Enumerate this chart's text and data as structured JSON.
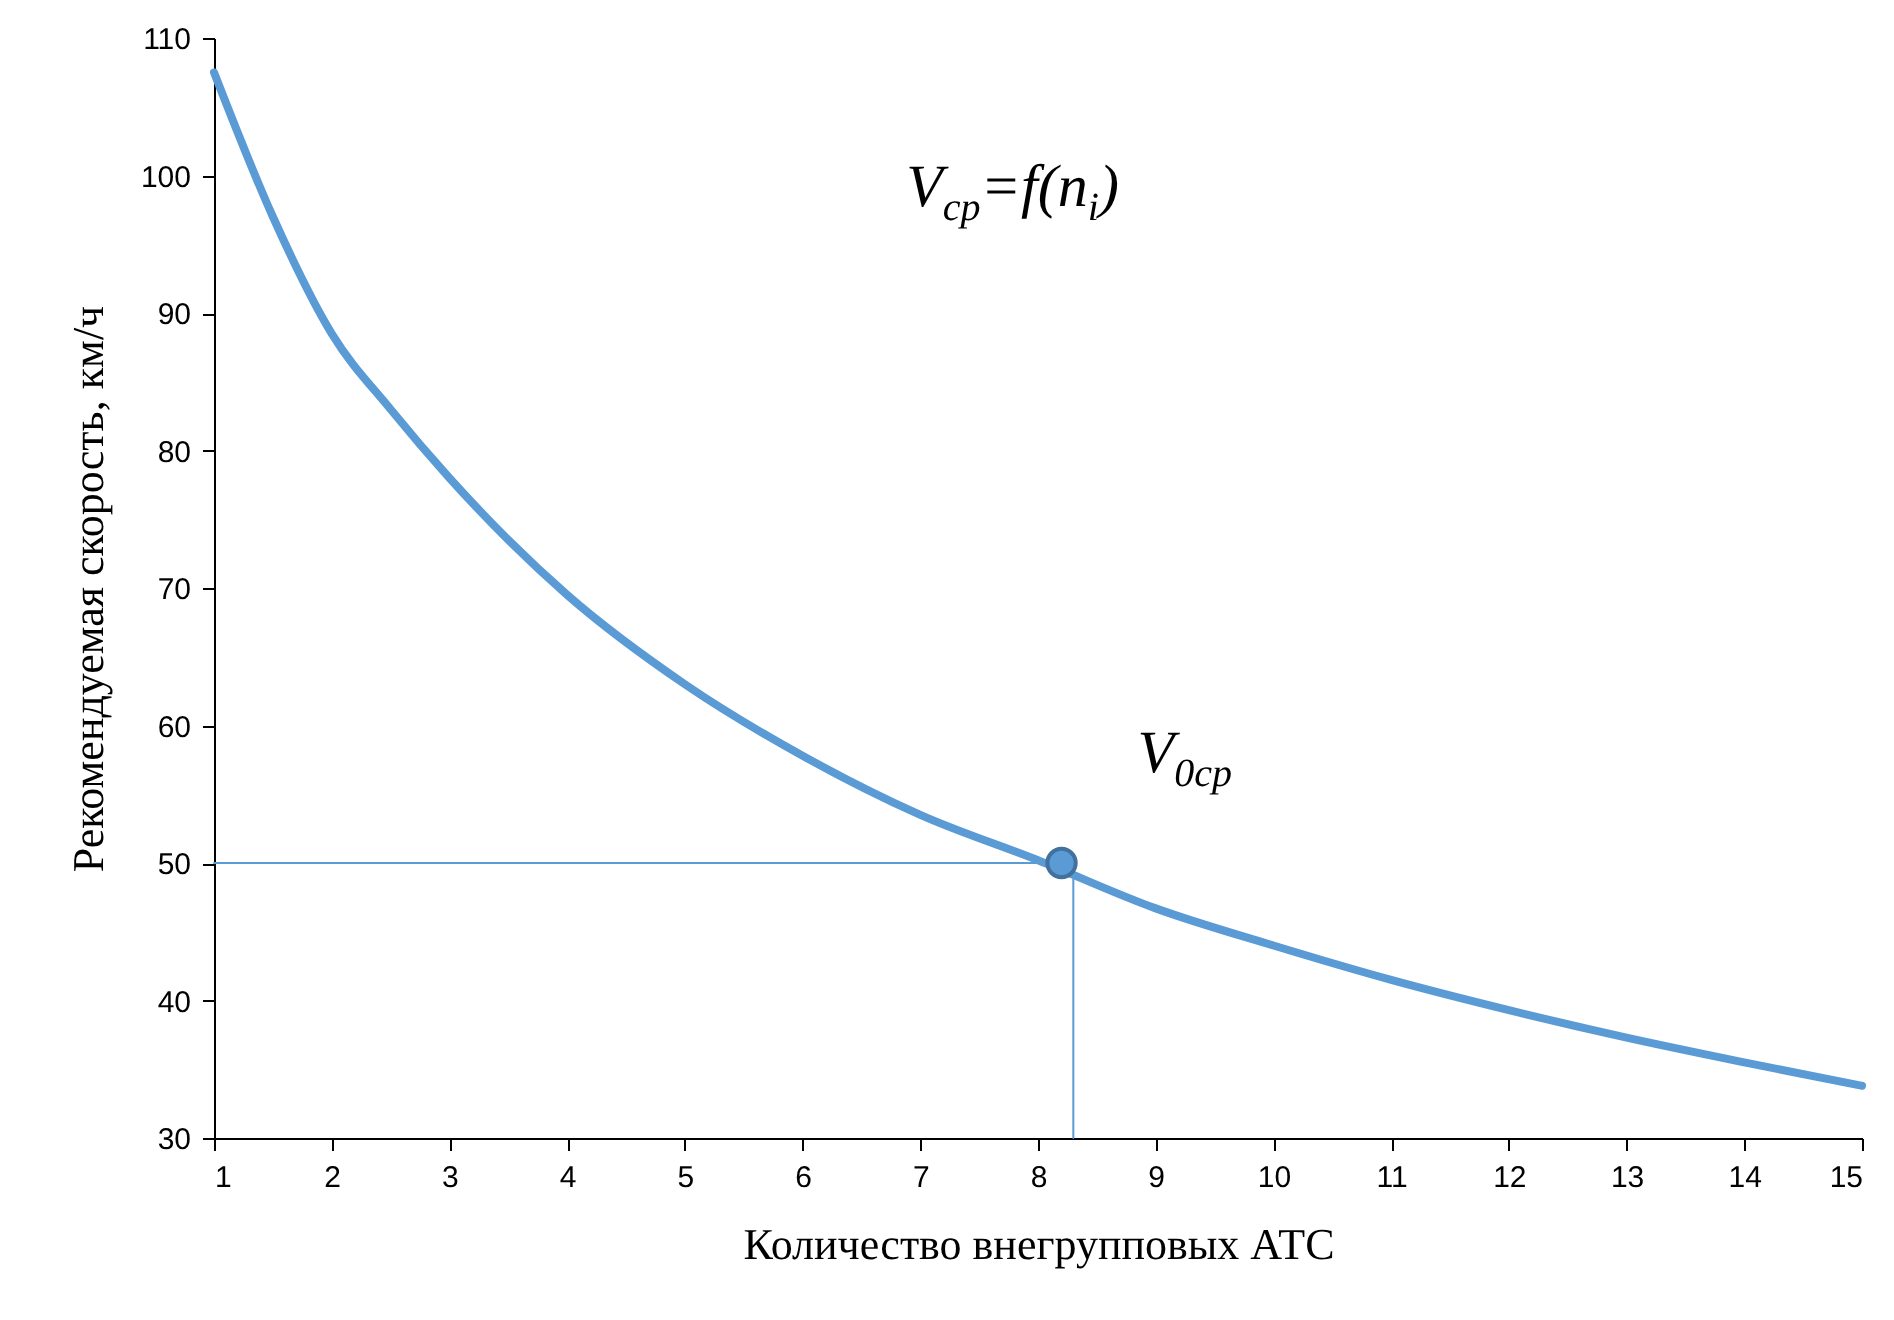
{
  "chart_data": {
    "type": "line",
    "xlabel": "Количество внегрупповых АТС",
    "ylabel": "Рекомендуемая скорость, км/ч",
    "xlim": [
      1,
      15
    ],
    "xticks": [
      1,
      2,
      3,
      4,
      5,
      6,
      7,
      8,
      9,
      10,
      11,
      12,
      13,
      14,
      15
    ],
    "ylim": [
      30,
      110
    ],
    "yticks": [
      30,
      40,
      50,
      60,
      70,
      80,
      90,
      100,
      110
    ],
    "grid": false,
    "series": [
      {
        "color": "#5b9bd5",
        "x": [
          1,
          1.5,
          2,
          2.5,
          3,
          3.5,
          4,
          5,
          6,
          7,
          8,
          9,
          10,
          11,
          12,
          13,
          14,
          15
        ],
        "values": [
          107.5,
          97,
          88.5,
          83,
          78,
          73.5,
          69.5,
          63,
          57.8,
          53.5,
          50.2,
          46.7,
          44,
          41.5,
          39.3,
          37.3,
          35.5,
          33.8
        ]
      },
      {
        "type": "line",
        "color": "#5b9bd5",
        "x": [
          1,
          8.2
        ],
        "values": [
          50,
          50
        ]
      },
      {
        "type": "line",
        "color": "#5b9bd5",
        "x": [
          8.3,
          8.3
        ],
        "values": [
          30,
          50
        ]
      },
      {
        "type": "scatter",
        "marker": "circle",
        "color": "#5b9bd5",
        "x": [
          8.2
        ],
        "values": [
          50
        ]
      }
    ],
    "annotations": [
      "V$_{cp}$=f(n$_{i}$)",
      {
        "text": "V$_{0cp}$",
        "x": 8.2,
        "y": 50
      }
    ]
  }
}
